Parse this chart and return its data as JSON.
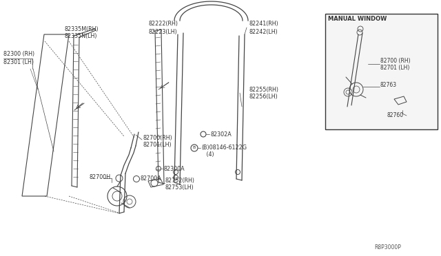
{
  "diagram_number": "R8P3000P",
  "background_color": "#ffffff",
  "line_color": "#444444",
  "text_color": "#333333",
  "fig_width": 6.4,
  "fig_height": 3.72,
  "labels": {
    "82300_RH": "82300 (RH)",
    "82301_LH": "82301 (LH)",
    "82335M_RH": "82335M(RH)",
    "82335N_LH": "82335N(LH)",
    "82222_RH": "82222(RH)",
    "82223_LH": "82223(LH)",
    "82241_RH": "82241(RH)",
    "82242_LH": "82242(LH)",
    "82255_RH": "82255(RH)",
    "82256_LH": "82256(LH)",
    "82302A": "82302A",
    "08146": "(B)08146-6122G",
    "08146b": "   (4)",
    "82700_RH": "82700(RH)",
    "82701_LH": "82701(LH)",
    "82300A": "82300A",
    "82752_RH": "82752(RH)",
    "82753_LH": "82753(LH)",
    "82700H": "82700H",
    "82700A": "82700A",
    "manual_window": "MANUAL WINDOW",
    "mw_82700_RH": "82700 (RH)",
    "mw_82701_LH": "82701 (LH)",
    "mw_82763": "82763",
    "mw_82760": "82760"
  }
}
